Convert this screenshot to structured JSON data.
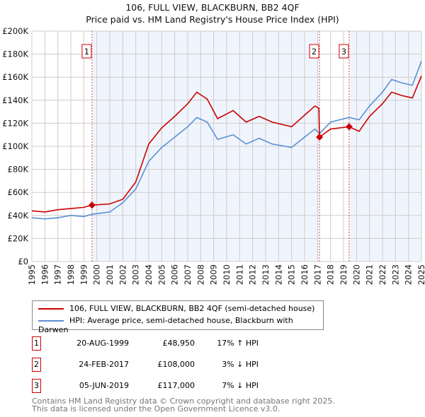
{
  "chart_data": {
    "type": "line",
    "title": "106, FULL VIEW, BLACKBURN, BB2 4QF",
    "subtitle": "Price paid vs. HM Land Registry's House Price Index (HPI)",
    "xlim": [
      1995,
      2025
    ],
    "ylim": [
      0,
      200000
    ],
    "y_ticks": [
      "£0",
      "£20K",
      "£40K",
      "£60K",
      "£80K",
      "£100K",
      "£120K",
      "£140K",
      "£160K",
      "£180K",
      "£200K"
    ],
    "x_ticks": [
      "1995",
      "1996",
      "1997",
      "1998",
      "1999",
      "2000",
      "2001",
      "2002",
      "2003",
      "2004",
      "2005",
      "2006",
      "2007",
      "2008",
      "2009",
      "2010",
      "2011",
      "2012",
      "2013",
      "2014",
      "2015",
      "2016",
      "2017",
      "2018",
      "2019",
      "2020",
      "2021",
      "2022",
      "2023",
      "2024",
      "2025"
    ],
    "grid": true,
    "series": [
      {
        "name": "106, FULL VIEW, BLACKBURN, BB2 4QF (semi-detached house)",
        "color": "#cc0000",
        "x": [
          1995,
          1996,
          1997,
          1998,
          1999,
          1999.63,
          2001,
          2002,
          2003,
          2004,
          2005,
          2006,
          2007,
          2007.7,
          2008.5,
          2009.3,
          2010.5,
          2011.5,
          2012.5,
          2013.5,
          2015,
          2016,
          2016.8,
          2017.1,
          2017.15,
          2018,
          2019.43,
          2020.2,
          2021,
          2022,
          2022.7,
          2023.5,
          2024.3,
          2025
        ],
        "y": [
          44000,
          43000,
          45000,
          46000,
          47000,
          48950,
          50000,
          54000,
          69000,
          102000,
          116000,
          126000,
          137000,
          147000,
          141000,
          124000,
          131000,
          121000,
          126000,
          121000,
          117000,
          127000,
          135000,
          133000,
          108000,
          115000,
          117000,
          113000,
          126000,
          137000,
          147000,
          144000,
          142000,
          161000
        ]
      },
      {
        "name": "HPI: Average price, semi-detached house, Blackburn with Darwen",
        "color": "#5b8fd4",
        "x": [
          1995,
          1996,
          1997,
          1998,
          1999,
          1999.63,
          2001,
          2002,
          2003,
          2004,
          2005,
          2006,
          2007,
          2007.7,
          2008.5,
          2009.3,
          2010.5,
          2011.5,
          2012.5,
          2013.5,
          2015,
          2016,
          2016.8,
          2017.15,
          2018,
          2019.43,
          2020.2,
          2021,
          2022,
          2022.7,
          2023.5,
          2024.3,
          2025
        ],
        "y": [
          38000,
          37000,
          38000,
          40000,
          39000,
          41000,
          43000,
          51000,
          63000,
          87000,
          99000,
          108000,
          117000,
          125000,
          121000,
          106000,
          110000,
          102000,
          107000,
          102000,
          99000,
          108000,
          115000,
          111000,
          121000,
          125000,
          123000,
          135000,
          147000,
          158000,
          155000,
          153000,
          174000
        ]
      }
    ],
    "sales": [
      {
        "label": "1",
        "date": "20-AUG-1999",
        "price": "£48,950",
        "hpi": "17% ↑ HPI",
        "x": 1999.63,
        "y": 48950
      },
      {
        "label": "2",
        "date": "24-FEB-2017",
        "price": "£108,000",
        "hpi": "3% ↓ HPI",
        "x": 2017.15,
        "y": 108000
      },
      {
        "label": "3",
        "date": "05-JUN-2019",
        "price": "£117,000",
        "hpi": "7% ↓ HPI",
        "x": 2019.43,
        "y": 117000
      }
    ],
    "legend_placement": "below"
  },
  "footer": [
    "Contains HM Land Registry data © Crown copyright and database right 2025.",
    "This data is licensed under the Open Government Licence v3.0."
  ]
}
